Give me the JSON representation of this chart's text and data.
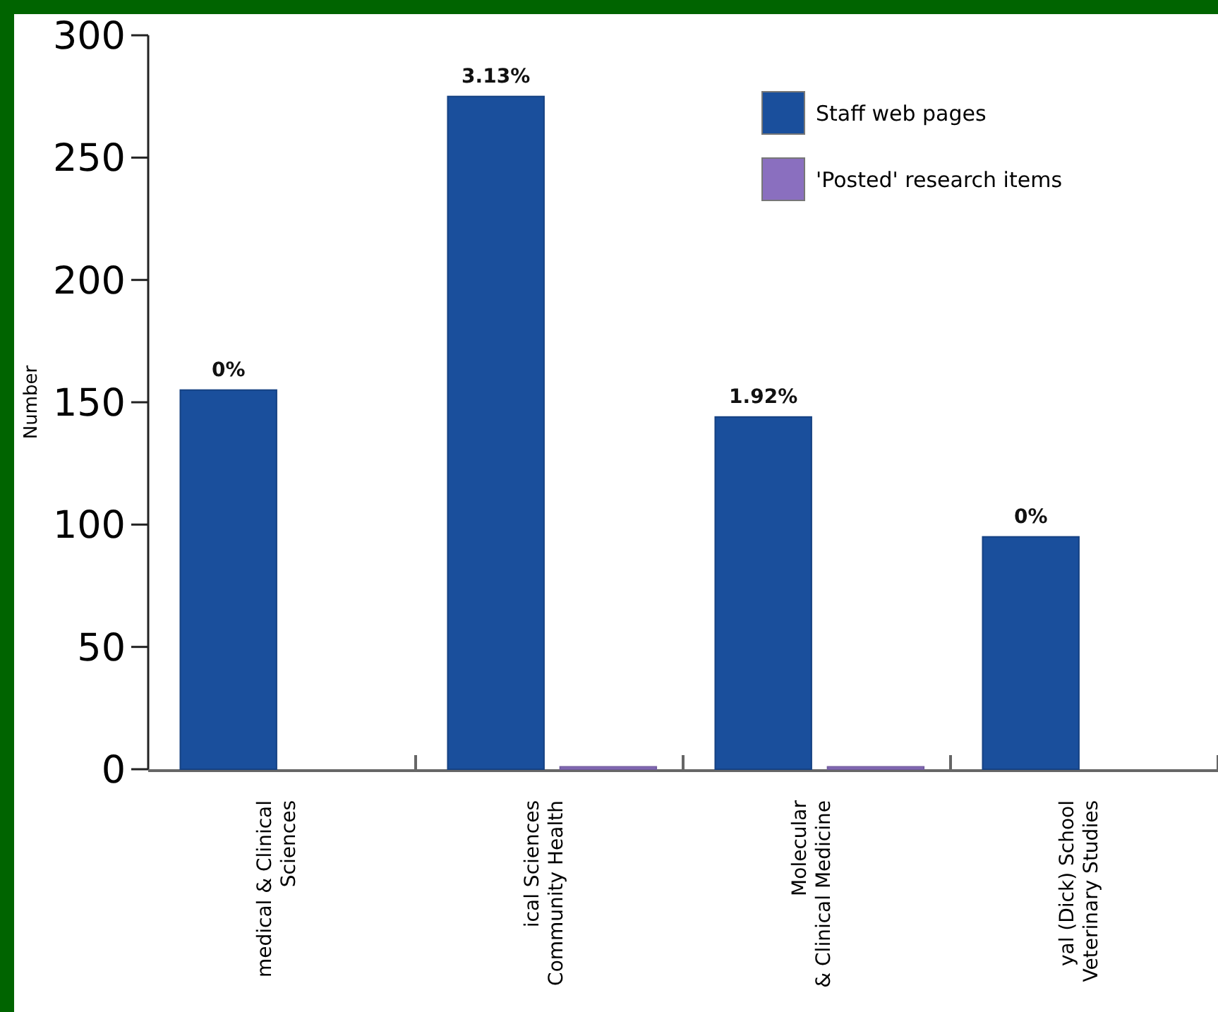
{
  "chart_data": {
    "type": "bar",
    "ylabel": "Number",
    "categories": [
      "medical & Clinical\nSciences",
      "ical Sciences\nCommunity Health",
      "Molecular\n& Clinical Medicine",
      "yal (Dick) School\nVeterinary Studies"
    ],
    "series": [
      {
        "name": "Staff web pages",
        "color": "#1a4f9c",
        "values": [
          155,
          275,
          144,
          95
        ]
      },
      {
        "name": "'Posted' research items",
        "color": "#8a6fbf",
        "values": [
          0,
          1,
          1,
          0
        ]
      }
    ],
    "annotations": [
      {
        "text": "0%",
        "x": "medical & Clinical\nSciences",
        "y": 155
      },
      {
        "text": "3.13%",
        "x": "ical Sciences\nCommunity Health",
        "y": 275
      },
      {
        "text": "1.92%",
        "x": "Molecular\n& Clinical Medicine",
        "y": 144
      },
      {
        "text": "0%",
        "x": "yal (Dick) School\nVeterinary Studies",
        "y": 95
      }
    ],
    "ylim": [
      0,
      300
    ],
    "yticks": [
      0,
      50,
      100,
      150,
      200,
      250,
      300
    ],
    "grid": false,
    "legend": "top right"
  }
}
